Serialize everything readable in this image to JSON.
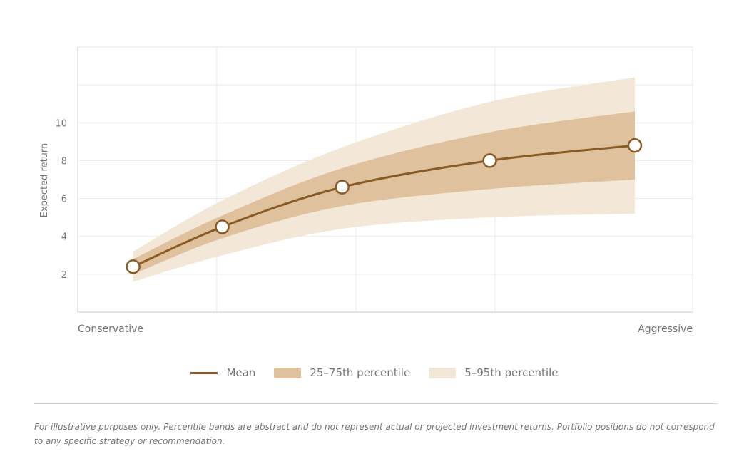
{
  "colors": {
    "mean": "#8a5a25",
    "iqr_band": "#dfc19d",
    "outer_band": "#f3e8d7",
    "grid": "#ece9e6",
    "axis": "#cfcac4",
    "text": "#7a7470"
  },
  "chart_data": {
    "type": "line",
    "title": "",
    "xlabel": "",
    "ylabel": "Expected return",
    "x_range": [
      0,
      1
    ],
    "x_tick_labels": [
      {
        "x": 0,
        "label": "Conservative"
      },
      {
        "x": 1,
        "label": "Aggressive"
      }
    ],
    "x_gridlines": [
      0.2261,
      0.4523,
      0.6784
    ],
    "ylim": [
      0,
      14
    ],
    "y_ticks": [
      2,
      4,
      6,
      8,
      10
    ],
    "y_gridlines": [
      2,
      4,
      6,
      8,
      10,
      12
    ],
    "grid": true,
    "legend_position": "bottom-center",
    "x": [
      0.09,
      0.235,
      0.43,
      0.67,
      0.906
    ],
    "series": [
      {
        "name": "Mean",
        "kind": "line",
        "values": [
          2.4,
          4.5,
          6.6,
          8.0,
          8.8
        ]
      },
      {
        "name": "25–75th percentile",
        "kind": "band",
        "lower": [
          2.0,
          3.9,
          5.6,
          6.5,
          7.0
        ],
        "upper": [
          2.8,
          5.1,
          7.6,
          9.5,
          10.6
        ]
      },
      {
        "name": "5–95th percentile",
        "kind": "band",
        "lower": [
          1.6,
          3.0,
          4.4,
          5.0,
          5.2
        ],
        "upper": [
          3.2,
          5.9,
          8.7,
          11.1,
          12.4
        ]
      }
    ]
  },
  "footnote": "For illustrative purposes only. Percentile bands are abstract and do not represent actual or projected investment returns. Portfolio positions do not correspond to any specific strategy or recommendation."
}
